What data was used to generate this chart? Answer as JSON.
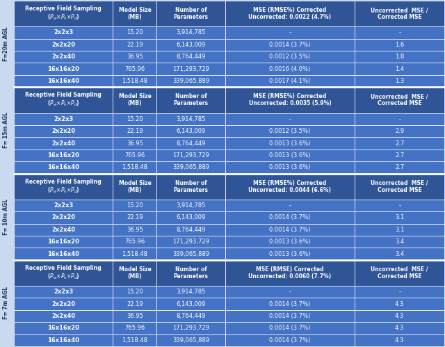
{
  "sections": [
    {
      "label": "F=20m AGL",
      "header_mse": "MSE (RMSE%) Corrected\nUncorrected: 0.0022 (4.7%)",
      "rows": [
        [
          "2x2x3",
          "15.20",
          "3,914,785",
          "-",
          "-"
        ],
        [
          "2x2x20",
          "22.19",
          "6,143,009",
          "0.0014 (3.7%)",
          "1.6"
        ],
        [
          "2x2x40",
          "36.95",
          "8,764,449",
          "0.0012 (3.5%)",
          "1.8"
        ],
        [
          "16x16x20",
          "765.96",
          "171,293,729",
          "0.0016 (4.0%)",
          "1.4"
        ],
        [
          "16x16x40",
          "1,518.48",
          "339,065,889",
          "0.0017 (4.1%)",
          "1.3"
        ]
      ]
    },
    {
      "label": "F= 15m AGL",
      "header_mse": "MSE (RMSE%) Corrected\nUncorrected: 0.0035 (5.9%)",
      "rows": [
        [
          "2x2x3",
          "15.20",
          "3,914,785",
          "-",
          "-"
        ],
        [
          "2x2x20",
          "22.19",
          "6,143,009",
          "0.0012 (3.5%)",
          "2.9"
        ],
        [
          "2x2x40",
          "36.95",
          "8,764,449",
          "0.0013 (3.6%)",
          "2.7"
        ],
        [
          "16x16x20",
          "765.96",
          "171,293,729",
          "0.0013 (3.6%)",
          "2.7"
        ],
        [
          "16x16x40",
          "1,518.48",
          "339,065,889",
          "0.0013 (3.6%)",
          "2.7"
        ]
      ]
    },
    {
      "label": "F= 10m AGL",
      "header_mse": "MSE (RMSE%) Corrected\nUncorrected: 0.0044 (6.6%)",
      "rows": [
        [
          "2x2x3",
          "15.20",
          "3,914,785",
          "-",
          "-"
        ],
        [
          "2x2x20",
          "22.19",
          "6,143,009",
          "0.0014 (3.7%)",
          "3.1"
        ],
        [
          "2x2x40",
          "36.95",
          "8,764,449",
          "0.0014 (3.7%)",
          "3.1"
        ],
        [
          "16x16x20",
          "765.96",
          "171,293,729",
          "0.0013 (3.6%)",
          "3.4"
        ],
        [
          "16x16x40",
          "1,518.48",
          "339,065,889",
          "0.0013 (3.6%)",
          "3.4"
        ]
      ]
    },
    {
      "label": "F= 7m AGL",
      "header_mse": "MSE (RMSE) Corrected\nUncorrected: 0.0060 (7.7%)",
      "rows": [
        [
          "2x2x3",
          "15.20",
          "3,914,785",
          "-",
          "-"
        ],
        [
          "2x2x20",
          "22.19",
          "6,143,009",
          "0.0014 (3.7%)",
          "4.3"
        ],
        [
          "2x2x40",
          "36.95",
          "8,764,449",
          "0.0014 (3.7%)",
          "4.3"
        ],
        [
          "16x16x20",
          "765.96",
          "171,293,729",
          "0.0014 (3.7%)",
          "4.3"
        ],
        [
          "16x16x40",
          "1,518.48",
          "339,065,889",
          "0.0014 (3.7%)",
          "4.3"
        ]
      ]
    }
  ],
  "header_bg": "#2F5597",
  "data_row_bg": "#4472C4",
  "header_text_color": "#ffffff",
  "data_text_color": "#ffffff",
  "bg_color": "#C9D9F0",
  "side_label_color": "#1F3864"
}
